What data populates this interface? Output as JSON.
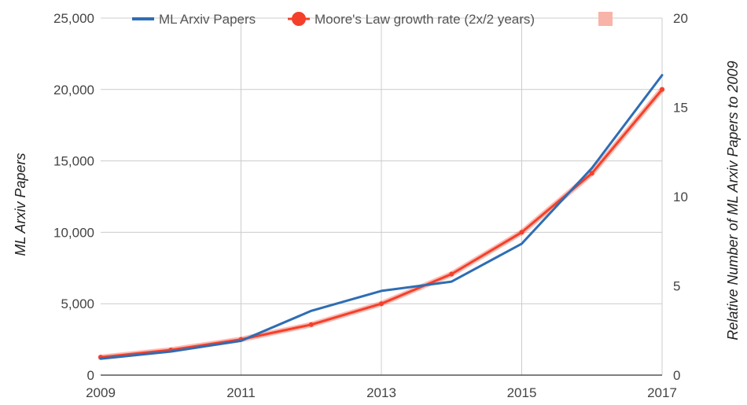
{
  "chart_data": {
    "type": "line",
    "x": [
      2009,
      2010,
      2011,
      2012,
      2013,
      2014,
      2015,
      2016,
      2017
    ],
    "x_tick_labels": [
      "2009",
      "2011",
      "2013",
      "2015",
      "2017"
    ],
    "xlim": [
      2009,
      2017
    ],
    "ylabel": "ML Arxiv Papers",
    "ylim": [
      0,
      25000
    ],
    "y_tick_labels": [
      "0",
      "5,000",
      "10,000",
      "15,000",
      "20,000",
      "25,000"
    ],
    "y2label": "Relative Number of ML Arxiv Papers  to 2009",
    "y2lim": [
      0,
      20
    ],
    "y2_tick_labels": [
      "0",
      "5",
      "10",
      "15",
      "20"
    ],
    "grid": true,
    "legend_position": "top",
    "series": [
      {
        "name": "ML Arxiv Papers",
        "axis": "left",
        "color": "#2e6db4",
        "marker": "none",
        "values": [
          1150,
          1650,
          2400,
          4500,
          5900,
          6550,
          9200,
          14500,
          21000
        ]
      },
      {
        "name": "Moore's Law growth rate (2x/2 years)",
        "axis": "right",
        "color": "#f4402a",
        "marker": "circle",
        "values": [
          1.0,
          1.41,
          2.0,
          2.83,
          4.0,
          5.66,
          8.0,
          11.31,
          16.0
        ]
      }
    ],
    "legend_extra": {
      "name": "",
      "color": "#f8b4a8",
      "marker": "square"
    }
  }
}
